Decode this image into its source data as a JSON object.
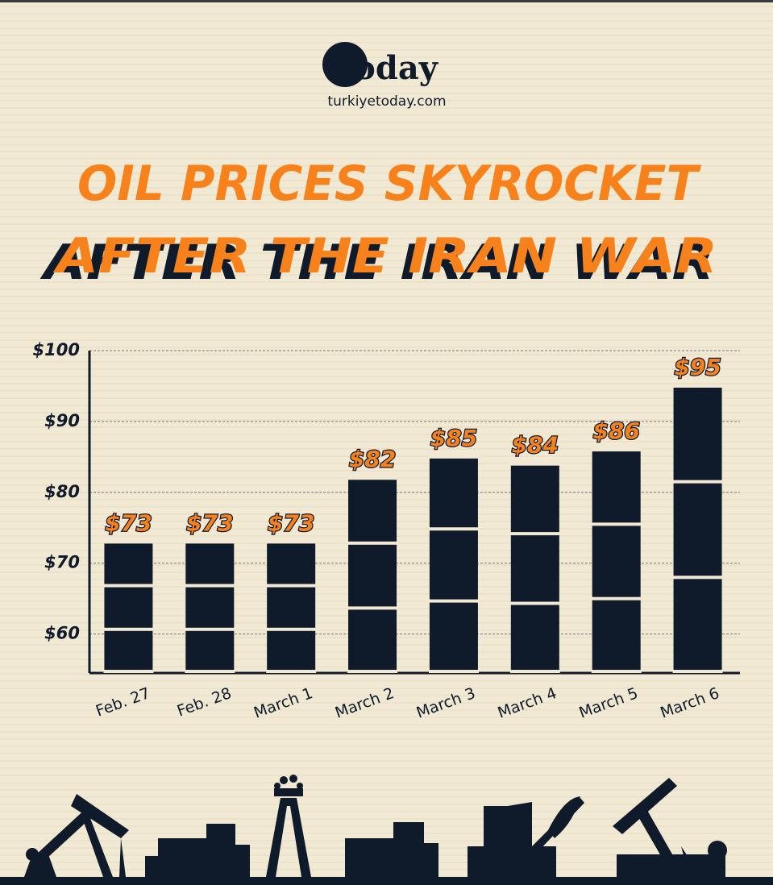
{
  "brand": {
    "name": "Today",
    "url": "turkiyetoday.com"
  },
  "chart_data": {
    "type": "bar",
    "title": [
      "OIL PRICES SKYROCKET",
      "AFTER THE IRAN WAR"
    ],
    "categories": [
      "Feb. 27",
      "Feb. 28",
      "March 1",
      "March 2",
      "March 3",
      "March 4",
      "March 5",
      "March 6"
    ],
    "values": [
      73,
      73,
      73,
      82,
      85,
      84,
      86,
      95
    ],
    "value_labels": [
      "$73",
      "$73",
      "$73",
      "$82",
      "$85",
      "$84",
      "$86",
      "$95"
    ],
    "color": "#0f1a2b",
    "ylim": [
      54.5,
      100
    ],
    "yticks": [
      {
        "value": 60,
        "label": "$60"
      },
      {
        "value": 70,
        "label": "$70"
      },
      {
        "value": 80,
        "label": "$80"
      },
      {
        "value": 90,
        "label": "$90"
      },
      {
        "value": 100,
        "label": "$100"
      }
    ],
    "grid": true
  }
}
